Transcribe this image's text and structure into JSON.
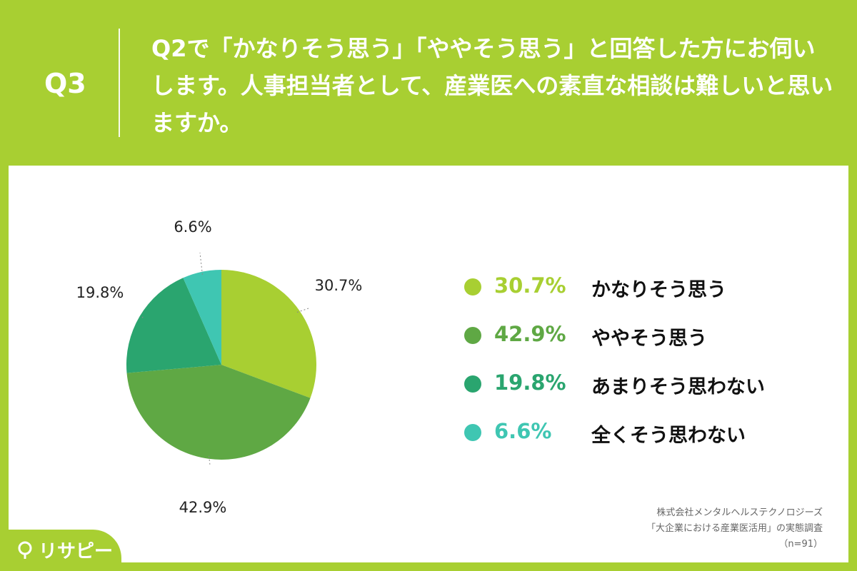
{
  "header": {
    "q_label": "Q3",
    "question": "Q2で「かなりそう思う」「ややそう思う」と回答した方にお伺いします。人事担当者として、産業医への素直な相談は難しいと思いますか。"
  },
  "chart_data": {
    "type": "pie",
    "start_angle_deg": 0,
    "direction": "clockwise",
    "series": [
      {
        "name": "かなりそう思う",
        "value": 30.7,
        "label": "30.7%",
        "color": "#a8cf32"
      },
      {
        "name": "ややそう思う",
        "value": 42.9,
        "label": "42.9%",
        "color": "#5fa844"
      },
      {
        "name": "あまりそう思わない",
        "value": 19.8,
        "label": "19.8%",
        "color": "#2aa56f"
      },
      {
        "name": "全くそう思わない",
        "value": 6.6,
        "label": "6.6%",
        "color": "#3fc6b2"
      }
    ],
    "legend_position": "right"
  },
  "source": {
    "line1": "株式会社メンタルヘルステクノロジーズ",
    "line2": "「大企業における産業医活用」の実態調査",
    "line3": "（n=91）"
  },
  "logo": {
    "text": "リサピー"
  }
}
